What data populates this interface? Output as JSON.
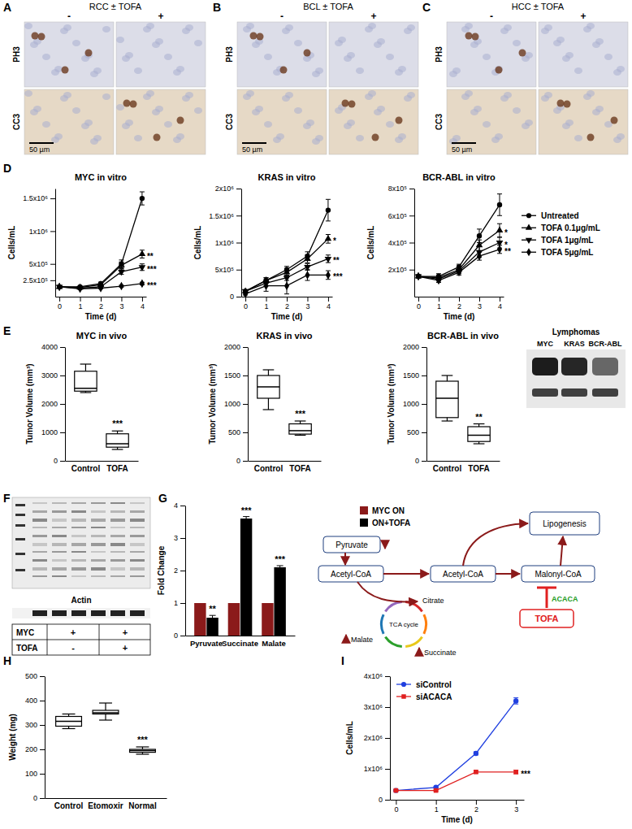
{
  "panels": [
    "A",
    "B",
    "C",
    "D",
    "E",
    "F",
    "G",
    "H",
    "I"
  ],
  "micrographs": [
    {
      "title": "RCC ± TOFA",
      "columns": [
        "-",
        "+"
      ],
      "rows": [
        "PH3",
        "CC3"
      ],
      "scale_bar": "50 µm"
    },
    {
      "title": "BCL ± TOFA",
      "columns": [
        "-",
        "+"
      ],
      "rows": [
        "PH3",
        "CC3"
      ],
      "scale_bar": "50 µm"
    },
    {
      "title": "HCC ± TOFA",
      "columns": [
        "-",
        "+"
      ],
      "rows": [
        "PH3",
        "CC3"
      ],
      "scale_bar": "50 µm"
    }
  ],
  "blot_E": {
    "title": "Lymphomas",
    "lanes": [
      "MYC",
      "KRAS",
      "BCR-ABL"
    ]
  },
  "blot_F": {
    "loading_label": "Actin",
    "rows": [
      {
        "label": "MYC",
        "cells": [
          "+",
          "+"
        ]
      },
      {
        "label": "TOFA",
        "cells": [
          "-",
          "+"
        ]
      }
    ]
  },
  "pathway": {
    "nodes": [
      "Pyruvate",
      "Acetyl-CoA",
      "Acetyl-CoA",
      "Malonyl-CoA",
      "Lipogenesis",
      "Citrate",
      "TCA cycle",
      "Malate",
      "Succinate"
    ],
    "enzyme": "ACACA",
    "inhibitor": "TOFA"
  },
  "chart_data": [
    {
      "type": "line",
      "title": "MYC in vitro",
      "x_label": "Time (d)",
      "y_label": "Cells/mL",
      "x": [
        0,
        1,
        2,
        3,
        4
      ],
      "xlim": [
        -0.2,
        4.2
      ],
      "xticks": [
        0,
        1,
        2,
        3,
        4
      ],
      "ylim": [
        0,
        1650000
      ],
      "yticks": [
        {
          "value": 250000,
          "label": "2.5x10⁵"
        },
        {
          "value": 500000,
          "label": "5x10⁵"
        },
        {
          "value": 1000000,
          "label": "1x10⁶"
        },
        {
          "value": 1500000,
          "label": "1.5x10⁶"
        }
      ],
      "series": [
        {
          "color": "#000000",
          "marker": "circle",
          "values": [
            150000,
            150000,
            200000,
            500000,
            1500000
          ],
          "errors": [
            10000,
            10000,
            20000,
            60000,
            100000
          ]
        },
        {
          "color": "#000000",
          "marker": "triangle-up",
          "values": [
            150000,
            140000,
            180000,
            480000,
            650000
          ],
          "errors": [
            10000,
            10000,
            15000,
            50000,
            60000
          ],
          "significance": "**"
        },
        {
          "color": "#000000",
          "marker": "triangle-down",
          "values": [
            150000,
            130000,
            150000,
            380000,
            450000
          ],
          "errors": [
            10000,
            10000,
            15000,
            40000,
            50000
          ],
          "significance": "***"
        },
        {
          "color": "#000000",
          "marker": "diamond",
          "values": [
            150000,
            120000,
            130000,
            160000,
            200000
          ],
          "errors": [
            10000,
            10000,
            10000,
            15000,
            20000
          ],
          "significance": "***"
        }
      ]
    },
    {
      "type": "line",
      "title": "KRAS in vitro",
      "x_label": "Time (d)",
      "y_label": "Cells/mL",
      "x": [
        0,
        1,
        2,
        3,
        4
      ],
      "xlim": [
        -0.2,
        4.2
      ],
      "xticks": [
        0,
        1,
        2,
        3,
        4
      ],
      "ylim": [
        0,
        2000000
      ],
      "yticks": [
        0,
        {
          "value": 500000,
          "label": "5x10⁵"
        },
        {
          "value": 1000000,
          "label": "1x10⁶"
        },
        {
          "value": 1500000,
          "label": "1.5x10⁶"
        },
        {
          "value": 2000000,
          "label": "2x10⁶"
        }
      ],
      "series": [
        {
          "color": "#000000",
          "marker": "circle",
          "values": [
            100000,
            300000,
            500000,
            750000,
            1600000
          ],
          "errors": [
            20000,
            50000,
            60000,
            80000,
            200000
          ]
        },
        {
          "color": "#000000",
          "marker": "triangle-up",
          "values": [
            100000,
            300000,
            450000,
            700000,
            1070000
          ],
          "errors": [
            20000,
            50000,
            60000,
            70000,
            80000
          ],
          "significance": "*"
        },
        {
          "color": "#000000",
          "marker": "triangle-down",
          "values": [
            100000,
            250000,
            350000,
            550000,
            700000
          ],
          "errors": [
            20000,
            50000,
            50000,
            60000,
            70000
          ],
          "significance": "**"
        },
        {
          "color": "#000000",
          "marker": "diamond",
          "values": [
            50000,
            200000,
            200000,
            400000,
            400000
          ],
          "errors": [
            20000,
            100000,
            150000,
            100000,
            80000
          ],
          "significance": "***"
        }
      ]
    },
    {
      "type": "line",
      "title": "BCR-ABL in vitro",
      "x_label": "Time (d)",
      "y_label": "Cells/mL",
      "x": [
        0,
        1,
        2,
        3,
        4
      ],
      "xlim": [
        -0.2,
        4.2
      ],
      "xticks": [
        0,
        1,
        2,
        3,
        4
      ],
      "ylim": [
        0,
        800000
      ],
      "yticks": [
        {
          "value": 200000,
          "label": "2x10⁵"
        },
        {
          "value": 400000,
          "label": "4x10⁵"
        },
        {
          "value": 600000,
          "label": "6x10⁵"
        },
        {
          "value": 800000,
          "label": "8x10⁵"
        }
      ],
      "legend": "right",
      "series": [
        {
          "name": "Untreated",
          "color": "#000000",
          "marker": "circle",
          "values": [
            150000,
            150000,
            220000,
            450000,
            680000
          ],
          "errors": [
            10000,
            20000,
            20000,
            50000,
            80000
          ]
        },
        {
          "name": "TOFA 0.1μg/mL",
          "color": "#000000",
          "marker": "triangle-up",
          "values": [
            150000,
            140000,
            200000,
            380000,
            490000
          ],
          "errors": [
            10000,
            15000,
            20000,
            40000,
            50000
          ],
          "significance": "*"
        },
        {
          "name": "TOFA 1μg/mL",
          "color": "#000000",
          "marker": "triangle-down",
          "values": [
            150000,
            130000,
            190000,
            330000,
            400000
          ],
          "errors": [
            10000,
            15000,
            20000,
            40000,
            40000
          ],
          "significance": "*"
        },
        {
          "name": "TOFA 5μg/mL",
          "color": "#000000",
          "marker": "diamond",
          "values": [
            150000,
            120000,
            180000,
            300000,
            350000
          ],
          "errors": [
            10000,
            15000,
            20000,
            30000,
            30000
          ],
          "significance": "**"
        }
      ]
    },
    {
      "type": "box",
      "title": "MYC in vivo",
      "y_label": "Tumor Volume (mm³)",
      "categories": [
        "Control",
        "TOFA"
      ],
      "min": [
        2400,
        400
      ],
      "q1": [
        2450,
        480
      ],
      "median": [
        2550,
        600
      ],
      "q3": [
        3150,
        950
      ],
      "max": [
        3400,
        1050
      ],
      "significance": [
        null,
        "***"
      ],
      "ylim": [
        0,
        4000
      ],
      "yticks": [
        0,
        1000,
        2000,
        3000,
        4000
      ]
    },
    {
      "type": "box",
      "title": "KRAS in vivo",
      "y_label": "Tumor Volume (mm³)",
      "categories": [
        "Control",
        "TOFA"
      ],
      "min": [
        900,
        450
      ],
      "q1": [
        1100,
        470
      ],
      "median": [
        1300,
        530
      ],
      "q3": [
        1500,
        650
      ],
      "max": [
        1600,
        700
      ],
      "significance": [
        null,
        "***"
      ],
      "ylim": [
        0,
        2000
      ],
      "yticks": [
        0,
        500,
        1000,
        1500,
        2000
      ]
    },
    {
      "type": "box",
      "title": "BCR-ABL in vivo",
      "y_label": "Tumor Volume (mm³)",
      "categories": [
        "Control",
        "TOFA"
      ],
      "min": [
        700,
        300
      ],
      "q1": [
        760,
        340
      ],
      "median": [
        1100,
        450
      ],
      "q3": [
        1400,
        600
      ],
      "max": [
        1500,
        650
      ],
      "significance": [
        null,
        "**"
      ],
      "ylim": [
        0,
        2000
      ],
      "yticks": [
        0,
        500,
        1000,
        1500,
        2000
      ]
    },
    {
      "type": "bar",
      "y_label": "Fold Change",
      "categories": [
        "Pyruvate",
        "Succinate",
        "Malate"
      ],
      "ylim": [
        0,
        4
      ],
      "yticks": [
        0,
        1,
        2,
        3,
        4
      ],
      "legend": "top-right",
      "series": [
        {
          "name": "MYC ON",
          "color": "#8b1a1a",
          "values": [
            1,
            1,
            1
          ]
        },
        {
          "name": "ON+TOFA",
          "color": "#000000",
          "values": [
            0.55,
            3.6,
            2.1
          ],
          "errors": [
            0.07,
            0.06,
            0.05
          ],
          "significance": [
            "**",
            "***",
            "***"
          ]
        }
      ]
    },
    {
      "type": "box",
      "y_label": "Weight (mg)",
      "categories": [
        "Control",
        "Etomoxir",
        "Normal"
      ],
      "min": [
        285,
        320,
        180
      ],
      "q1": [
        295,
        345,
        188
      ],
      "median": [
        315,
        350,
        195
      ],
      "q3": [
        335,
        360,
        200
      ],
      "max": [
        345,
        390,
        210
      ],
      "significance": [
        null,
        null,
        "***"
      ],
      "ylim": [
        0,
        500
      ],
      "yticks": [
        0,
        100,
        200,
        300,
        400,
        500
      ]
    },
    {
      "type": "line",
      "x_label": "Time (d)",
      "y_label": "Cells/mL",
      "x": [
        0,
        1,
        2,
        3
      ],
      "xlim": [
        -0.15,
        3.2
      ],
      "xticks": [
        0,
        1,
        2,
        3
      ],
      "ylim": [
        0,
        4000000
      ],
      "yticks": [
        0,
        {
          "value": 1000000,
          "label": "1x10⁶"
        },
        {
          "value": 2000000,
          "label": "2x10⁶"
        },
        {
          "value": 3000000,
          "label": "3x10⁶"
        },
        {
          "value": 4000000,
          "label": "4x10⁶"
        }
      ],
      "legend": "top-left",
      "series": [
        {
          "name": "siControl",
          "color": "#2040e0",
          "marker": "circle",
          "values": [
            300000,
            400000,
            1500000,
            3200000
          ],
          "errors": [
            20000,
            20000,
            50000,
            100000
          ]
        },
        {
          "name": "siACACA",
          "color": "#e02020",
          "marker": "square",
          "values": [
            300000,
            300000,
            900000,
            900000
          ],
          "errors": [
            20000,
            20000,
            40000,
            60000
          ],
          "significance": "***"
        }
      ]
    }
  ]
}
